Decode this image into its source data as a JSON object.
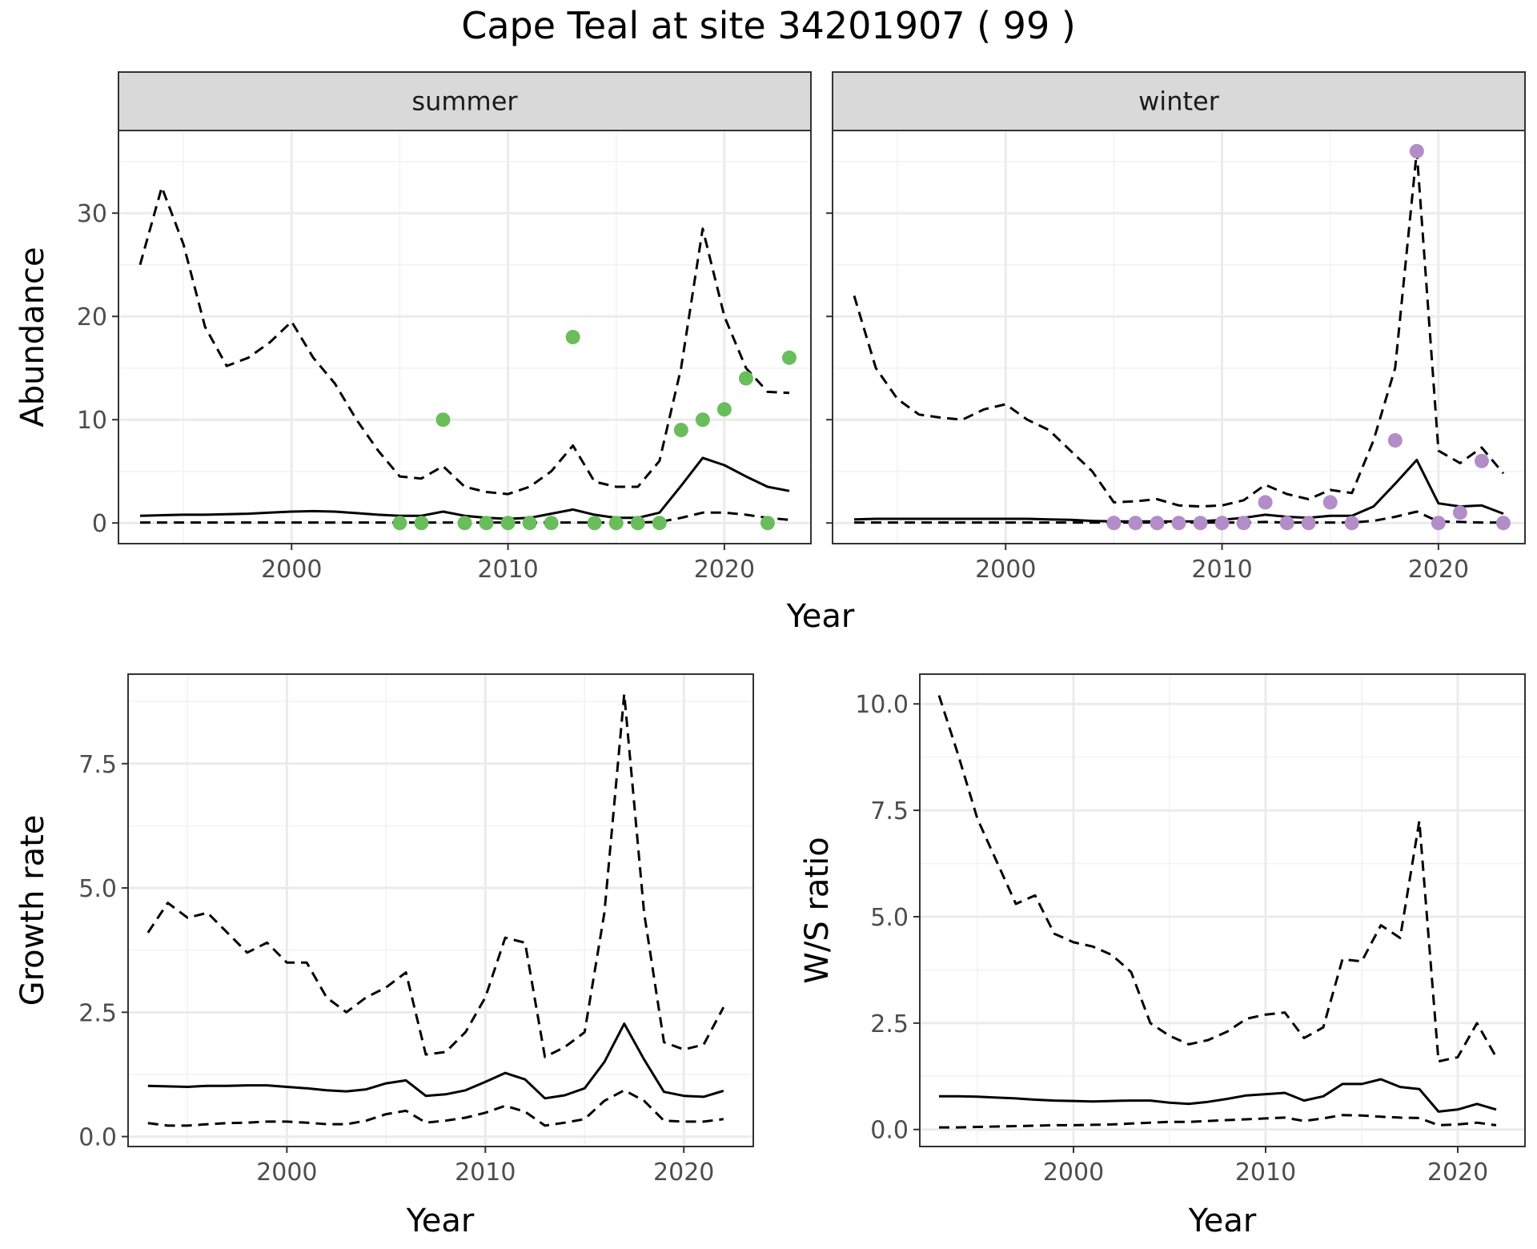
{
  "figure": {
    "title": "Cape Teal at site 34201907 ( 99 )",
    "shared_x_label": "Year"
  },
  "chart_data": [
    {
      "type": "line",
      "panel": "summer",
      "title": "summer",
      "xlabel": "Year",
      "ylabel": "Abundance",
      "xlim": [
        1992,
        2024
      ],
      "ylim": [
        -2,
        38
      ],
      "x_ticks": [
        2000,
        2010,
        2020
      ],
      "y_ticks": [
        0,
        10,
        20,
        30
      ],
      "grid": true,
      "point_color": "#6ABD5B",
      "x": [
        1993,
        1994,
        1995,
        1996,
        1997,
        1998,
        1999,
        2000,
        2001,
        2002,
        2003,
        2004,
        2005,
        2006,
        2007,
        2008,
        2009,
        2010,
        2011,
        2012,
        2013,
        2014,
        2015,
        2016,
        2017,
        2018,
        2019,
        2020,
        2021,
        2022,
        2023
      ],
      "series": [
        {
          "role": "mean",
          "style": "solid",
          "values": [
            0.7,
            0.75,
            0.8,
            0.8,
            0.85,
            0.9,
            1.0,
            1.1,
            1.15,
            1.1,
            0.95,
            0.8,
            0.7,
            0.7,
            1.1,
            0.7,
            0.5,
            0.4,
            0.5,
            0.9,
            1.3,
            0.8,
            0.5,
            0.5,
            1.0,
            3.6,
            6.3,
            5.6,
            4.5,
            3.5,
            3.1
          ]
        },
        {
          "role": "upper",
          "style": "dashed",
          "values": [
            25.0,
            32.5,
            27.0,
            19.0,
            15.2,
            16.0,
            17.5,
            19.5,
            16.0,
            13.5,
            10.0,
            7.0,
            4.5,
            4.3,
            5.5,
            3.5,
            3.0,
            2.8,
            3.5,
            5.0,
            7.5,
            4.0,
            3.5,
            3.5,
            6.0,
            15.0,
            28.5,
            20.0,
            15.0,
            12.7,
            12.6
          ]
        },
        {
          "role": "lower",
          "style": "dashed",
          "values": [
            0.05,
            0.05,
            0.05,
            0.05,
            0.05,
            0.05,
            0.05,
            0.05,
            0.05,
            0.05,
            0.05,
            0.05,
            0.05,
            0.05,
            0.05,
            0.05,
            0.05,
            0.05,
            0.05,
            0.05,
            0.05,
            0.05,
            0.05,
            0.05,
            0.1,
            0.5,
            1.0,
            1.0,
            0.8,
            0.5,
            0.3
          ]
        }
      ],
      "points": {
        "x": [
          2005,
          2006,
          2007,
          2008,
          2009,
          2010,
          2011,
          2012,
          2013,
          2014,
          2015,
          2016,
          2017,
          2018,
          2019,
          2020,
          2021,
          2022,
          2023
        ],
        "y": [
          0,
          0,
          10,
          0,
          0,
          0,
          0,
          0,
          18,
          0,
          0,
          0,
          0,
          9,
          10,
          11,
          14,
          0,
          16
        ]
      }
    },
    {
      "type": "line",
      "panel": "winter",
      "title": "winter",
      "xlabel": "Year",
      "ylabel": "Abundance",
      "xlim": [
        1992,
        2024
      ],
      "ylim": [
        -2,
        38
      ],
      "x_ticks": [
        2000,
        2010,
        2020
      ],
      "y_ticks": [
        0,
        10,
        20,
        30
      ],
      "grid": true,
      "point_color": "#B28DC8",
      "x": [
        1993,
        1994,
        1995,
        1996,
        1997,
        1998,
        1999,
        2000,
        2001,
        2002,
        2003,
        2004,
        2005,
        2006,
        2007,
        2008,
        2009,
        2010,
        2011,
        2012,
        2013,
        2014,
        2015,
        2016,
        2017,
        2018,
        2019,
        2020,
        2021,
        2022,
        2023
      ],
      "series": [
        {
          "role": "mean",
          "style": "solid",
          "values": [
            0.35,
            0.4,
            0.4,
            0.4,
            0.4,
            0.4,
            0.4,
            0.4,
            0.4,
            0.35,
            0.3,
            0.2,
            0.15,
            0.15,
            0.15,
            0.15,
            0.15,
            0.3,
            0.5,
            0.8,
            0.6,
            0.5,
            0.7,
            0.7,
            1.6,
            3.8,
            6.1,
            1.9,
            1.6,
            1.7,
            0.9
          ]
        },
        {
          "role": "upper",
          "style": "dashed",
          "values": [
            22.0,
            15.0,
            12.0,
            10.5,
            10.2,
            10.0,
            11.0,
            11.5,
            10.0,
            9.0,
            7.0,
            5.0,
            2.0,
            2.1,
            2.3,
            1.7,
            1.6,
            1.7,
            2.2,
            3.7,
            2.8,
            2.3,
            3.2,
            2.9,
            8.0,
            15.0,
            36.0,
            7.0,
            5.8,
            7.3,
            4.8
          ]
        },
        {
          "role": "lower",
          "style": "dashed",
          "values": [
            0.05,
            0.05,
            0.05,
            0.05,
            0.05,
            0.05,
            0.05,
            0.05,
            0.05,
            0.05,
            0.05,
            0.05,
            0.05,
            0.05,
            0.05,
            0.05,
            0.05,
            0.05,
            0.05,
            0.1,
            0.05,
            0.05,
            0.05,
            0.05,
            0.2,
            0.6,
            1.1,
            0.15,
            0.1,
            0.05,
            0.05
          ]
        }
      ],
      "points": {
        "x": [
          2005,
          2006,
          2007,
          2008,
          2009,
          2010,
          2011,
          2012,
          2013,
          2014,
          2015,
          2016,
          2018,
          2019,
          2020,
          2021,
          2022,
          2023
        ],
        "y": [
          0,
          0,
          0,
          0,
          0,
          0,
          0,
          2,
          0,
          0,
          2,
          0,
          8,
          36,
          0,
          1,
          6,
          0
        ]
      }
    },
    {
      "type": "line",
      "panel": "growth",
      "xlabel": "Year",
      "ylabel": "Growth rate",
      "xlim": [
        1992,
        2023.5
      ],
      "ylim": [
        -0.2,
        9.3
      ],
      "x_ticks": [
        2000,
        2010,
        2020
      ],
      "y_ticks": [
        0.0,
        2.5,
        5.0,
        7.5
      ],
      "y_tick_labels": [
        "0.0",
        "2.5",
        "5.0",
        "7.5"
      ],
      "grid": true,
      "x": [
        1993,
        1994,
        1995,
        1996,
        1997,
        1998,
        1999,
        2000,
        2001,
        2002,
        2003,
        2004,
        2005,
        2006,
        2007,
        2008,
        2009,
        2010,
        2011,
        2012,
        2013,
        2014,
        2015,
        2016,
        2017,
        2018,
        2019,
        2020,
        2021,
        2022
      ],
      "series": [
        {
          "role": "mean",
          "style": "solid",
          "values": [
            1.02,
            1.01,
            1.0,
            1.02,
            1.02,
            1.03,
            1.03,
            1.0,
            0.97,
            0.93,
            0.91,
            0.95,
            1.07,
            1.13,
            0.82,
            0.85,
            0.93,
            1.1,
            1.28,
            1.15,
            0.77,
            0.83,
            0.97,
            1.5,
            2.27,
            1.55,
            0.9,
            0.82,
            0.8,
            0.92
          ]
        },
        {
          "role": "upper",
          "style": "dashed",
          "values": [
            4.1,
            4.7,
            4.4,
            4.5,
            4.1,
            3.7,
            3.9,
            3.5,
            3.5,
            2.8,
            2.5,
            2.8,
            3.0,
            3.3,
            1.65,
            1.7,
            2.1,
            2.8,
            4.0,
            3.9,
            1.6,
            1.8,
            2.1,
            4.5,
            8.9,
            4.5,
            1.9,
            1.75,
            1.85,
            2.6
          ]
        },
        {
          "role": "lower",
          "style": "dashed",
          "values": [
            0.27,
            0.22,
            0.22,
            0.25,
            0.27,
            0.28,
            0.3,
            0.3,
            0.28,
            0.25,
            0.25,
            0.32,
            0.45,
            0.52,
            0.28,
            0.32,
            0.38,
            0.48,
            0.62,
            0.5,
            0.22,
            0.28,
            0.35,
            0.72,
            0.93,
            0.72,
            0.32,
            0.3,
            0.3,
            0.35
          ]
        }
      ]
    },
    {
      "type": "line",
      "panel": "ratio",
      "xlabel": "Year",
      "ylabel": "W/S ratio",
      "xlim": [
        1992,
        2023.5
      ],
      "ylim": [
        -0.4,
        10.7
      ],
      "x_ticks": [
        2000,
        2010,
        2020
      ],
      "y_ticks": [
        0.0,
        2.5,
        5.0,
        7.5,
        10.0
      ],
      "y_tick_labels": [
        "0.0",
        "2.5",
        "5.0",
        "7.5",
        "10.0"
      ],
      "grid": true,
      "x": [
        1993,
        1994,
        1995,
        1996,
        1997,
        1998,
        1999,
        2000,
        2001,
        2002,
        2003,
        2004,
        2005,
        2006,
        2007,
        2008,
        2009,
        2010,
        2011,
        2012,
        2013,
        2014,
        2015,
        2016,
        2017,
        2018,
        2019,
        2020,
        2021,
        2022
      ],
      "series": [
        {
          "role": "mean",
          "style": "solid",
          "values": [
            0.78,
            0.78,
            0.77,
            0.75,
            0.73,
            0.7,
            0.68,
            0.67,
            0.66,
            0.67,
            0.68,
            0.68,
            0.63,
            0.6,
            0.65,
            0.72,
            0.8,
            0.83,
            0.86,
            0.68,
            0.78,
            1.07,
            1.07,
            1.18,
            1.0,
            0.95,
            0.42,
            0.47,
            0.6,
            0.47
          ]
        },
        {
          "role": "upper",
          "style": "dashed",
          "values": [
            10.2,
            8.8,
            7.3,
            6.3,
            5.3,
            5.5,
            4.6,
            4.4,
            4.3,
            4.1,
            3.7,
            2.5,
            2.2,
            2.0,
            2.1,
            2.3,
            2.6,
            2.7,
            2.75,
            2.15,
            2.4,
            4.0,
            3.95,
            4.8,
            4.5,
            7.25,
            1.6,
            1.7,
            2.5,
            1.7
          ]
        },
        {
          "role": "lower",
          "style": "dashed",
          "values": [
            0.05,
            0.05,
            0.06,
            0.07,
            0.08,
            0.09,
            0.1,
            0.1,
            0.11,
            0.12,
            0.14,
            0.16,
            0.18,
            0.18,
            0.2,
            0.22,
            0.24,
            0.26,
            0.28,
            0.2,
            0.26,
            0.34,
            0.33,
            0.3,
            0.28,
            0.27,
            0.1,
            0.12,
            0.16,
            0.1
          ]
        }
      ]
    }
  ]
}
